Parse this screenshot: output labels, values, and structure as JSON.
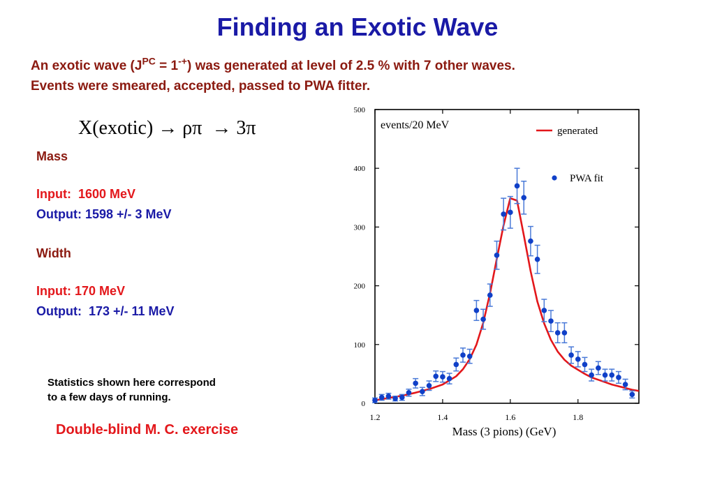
{
  "title": "Finding an Exotic Wave",
  "subtitle": {
    "part1": "An exotic wave (J",
    "sup1": "PC",
    "part2": " = 1",
    "sup2": "-+",
    "part3": ") was generated at level of 2.5 % with 7 other waves.",
    "line2": "Events were smeared, accepted, passed to PWA fitter."
  },
  "reaction": "X(exotic) → ρπ  → 3π",
  "results": {
    "mass_heading": "Mass",
    "mass_input": "Input:  1600 MeV",
    "mass_output": "Output: 1598 +/- 3 MeV",
    "width_heading": "Width",
    "width_input": "Input: 170 MeV",
    "width_output": "Output:  173 +/- 11 MeV"
  },
  "statistics_note": {
    "line1": "Statistics shown here correspond",
    "line2": "to a few days of running."
  },
  "footer": "Double-blind M. C. exercise",
  "colors": {
    "title": "#1a1aa6",
    "dark_red": "#8b1a10",
    "red": "#e3171b",
    "curve": "#e3171b",
    "points": "#1040c8",
    "errorbars": "#4a7ad8"
  },
  "chart_data": {
    "type": "scatter",
    "title": "",
    "ylabel_inside": "events/20 MeV",
    "xlabel": "Mass (3 pions)  (GeV)",
    "xlim": [
      1.2,
      1.98
    ],
    "ylim": [
      0,
      500
    ],
    "xticks": [
      1.2,
      1.4,
      1.6,
      1.8
    ],
    "xtick_labels": [
      "1.2",
      "1.4",
      "1.6",
      "1.8"
    ],
    "yticks": [
      0,
      100,
      200,
      300,
      400,
      500
    ],
    "ytick_labels": [
      "0",
      "100",
      "200",
      "300",
      "400",
      "500"
    ],
    "legend_placement": "top-right",
    "series": [
      {
        "name": "generated",
        "style": "line",
        "x": [
          1.2,
          1.24,
          1.28,
          1.32,
          1.36,
          1.4,
          1.44,
          1.46,
          1.48,
          1.5,
          1.52,
          1.54,
          1.56,
          1.58,
          1.6,
          1.62,
          1.64,
          1.66,
          1.68,
          1.7,
          1.72,
          1.74,
          1.76,
          1.78,
          1.8,
          1.82,
          1.84,
          1.86,
          1.88,
          1.9,
          1.92,
          1.94,
          1.96,
          1.98
        ],
        "y": [
          5,
          9,
          13,
          18,
          24,
          32,
          46,
          58,
          75,
          100,
          137,
          187,
          246,
          303,
          349,
          345,
          286,
          225,
          173,
          136,
          108,
          88,
          74,
          64,
          57,
          50,
          44,
          40,
          36,
          32,
          29,
          26,
          23,
          21
        ]
      },
      {
        "name": "PWA fit",
        "style": "points",
        "x": [
          1.2,
          1.22,
          1.24,
          1.26,
          1.28,
          1.3,
          1.32,
          1.34,
          1.36,
          1.38,
          1.4,
          1.42,
          1.44,
          1.46,
          1.48,
          1.5,
          1.52,
          1.54,
          1.56,
          1.58,
          1.6,
          1.62,
          1.64,
          1.66,
          1.68,
          1.7,
          1.72,
          1.74,
          1.76,
          1.78,
          1.8,
          1.82,
          1.84,
          1.86,
          1.88,
          1.9,
          1.92,
          1.94,
          1.96
        ],
        "y": [
          5,
          10,
          12,
          8,
          10,
          18,
          34,
          20,
          30,
          46,
          45,
          42,
          66,
          82,
          80,
          158,
          143,
          184,
          252,
          322,
          325,
          370,
          350,
          276,
          245,
          158,
          140,
          120,
          120,
          82,
          75,
          66,
          48,
          60,
          48,
          48,
          44,
          32,
          15
        ],
        "err": [
          4,
          5,
          5,
          4,
          5,
          6,
          8,
          7,
          8,
          9,
          9,
          9,
          11,
          12,
          12,
          17,
          17,
          19,
          24,
          27,
          27,
          30,
          28,
          25,
          24,
          19,
          18,
          17,
          17,
          14,
          13,
          12,
          10,
          11,
          10,
          10,
          10,
          9,
          6
        ]
      }
    ]
  }
}
